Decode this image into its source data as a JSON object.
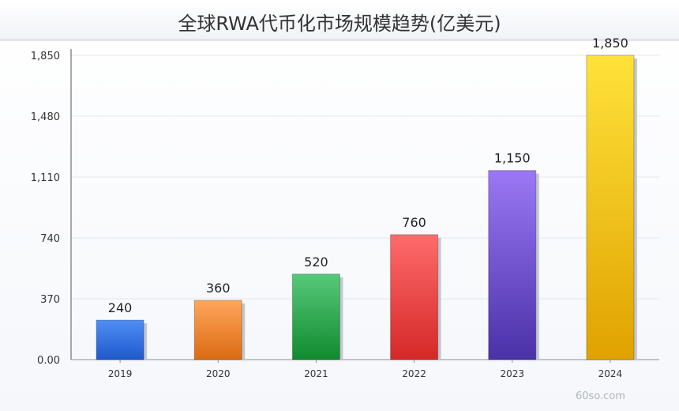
{
  "chart_data": {
    "type": "bar",
    "title": "全球RWA代币化市场规模趋势(亿美元)",
    "xlabel": "",
    "ylabel": "",
    "categories": [
      "2019",
      "2020",
      "2021",
      "2022",
      "2023",
      "2024"
    ],
    "values": [
      240,
      360,
      520,
      760,
      1150,
      1850
    ],
    "value_labels": [
      "240",
      "360",
      "520",
      "760",
      "1,150",
      "1,850"
    ],
    "ylim": [
      0,
      1850
    ],
    "yticks": [
      0,
      370,
      740,
      1110,
      1480,
      1850
    ],
    "ytick_labels": [
      "0.00",
      "370",
      "740",
      "1,110",
      "1,480",
      "1,850"
    ],
    "grid": true,
    "legend": "none",
    "bar_colors": [
      [
        "#4f8ef5",
        "#1f59cc"
      ],
      [
        "#ffa65c",
        "#db6b12"
      ],
      [
        "#58c97a",
        "#108a2f"
      ],
      [
        "#ff6b6b",
        "#d42828"
      ],
      [
        "#9b78f5",
        "#4a31a8"
      ],
      [
        "#ffe23a",
        "#e0a200"
      ]
    ]
  },
  "watermark": "60so.com"
}
